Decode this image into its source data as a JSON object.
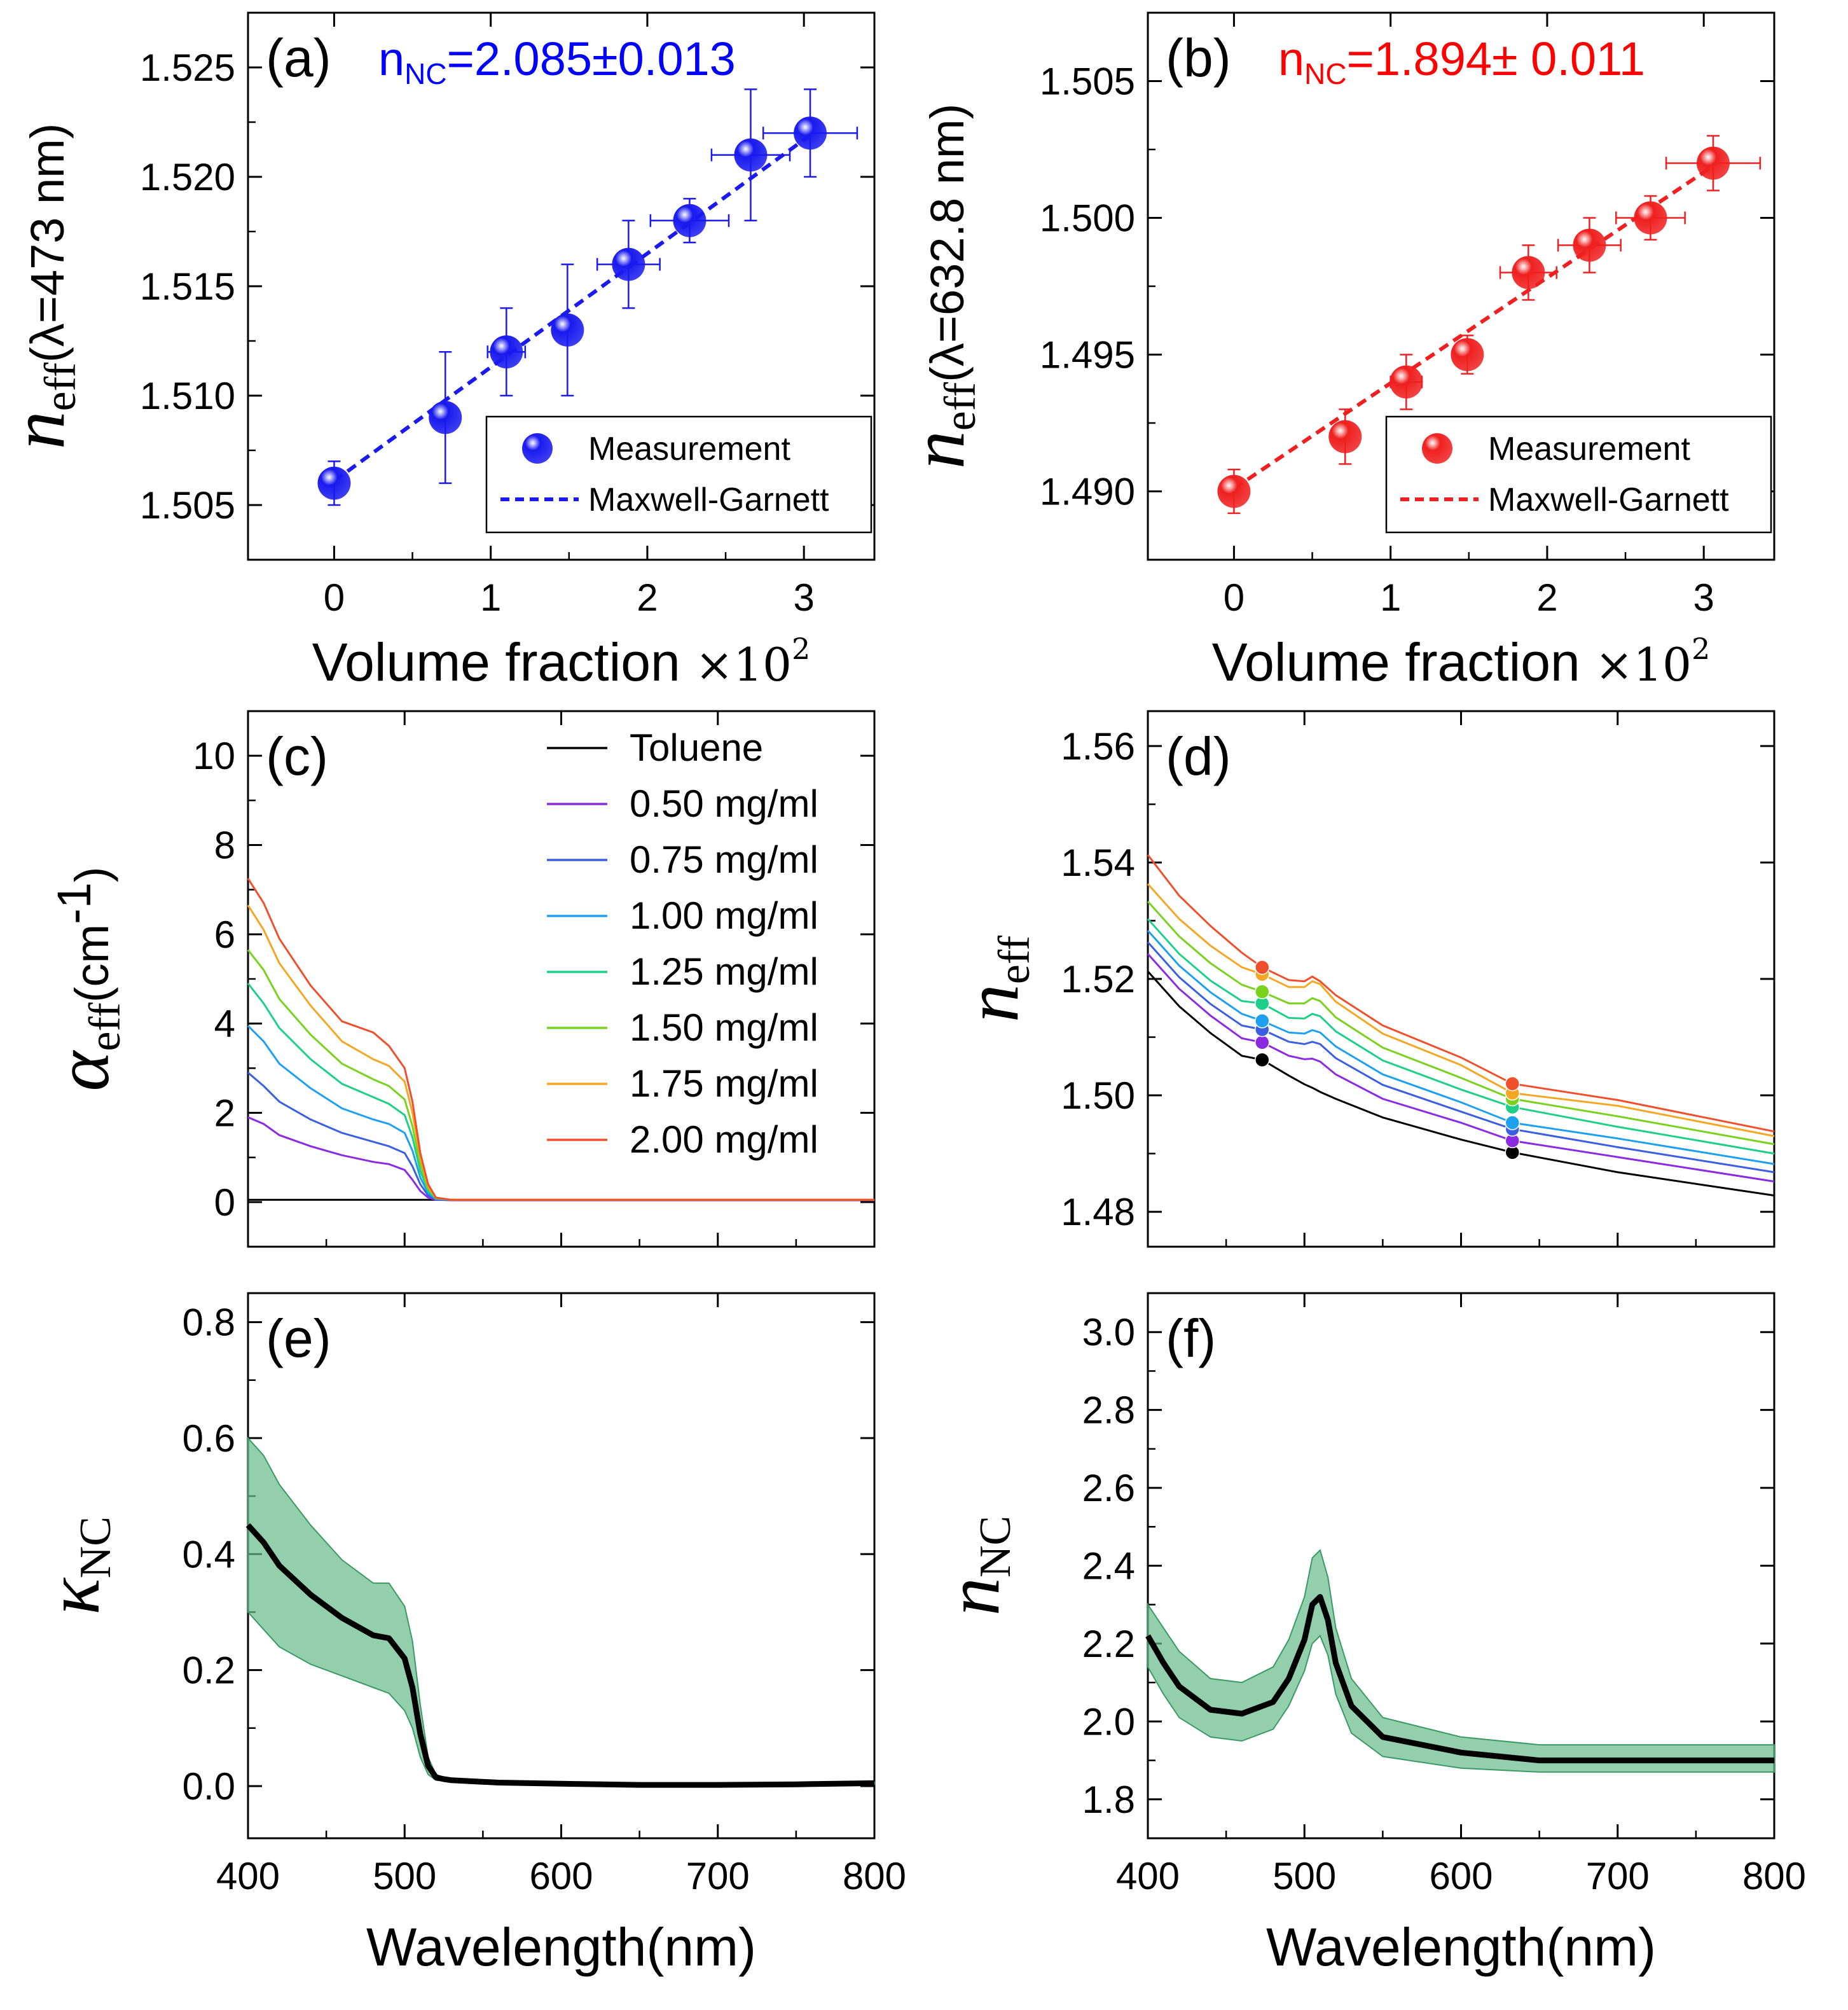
{
  "chart_data": [
    {
      "panel": "(a)",
      "type": "scatter",
      "annotation": {
        "prefix": "n",
        "sub": "NC",
        "value": "=2.085±0.013",
        "color": "#0000ff"
      },
      "xlabel": "Volume fraction ×10²",
      "xlabel_main": "Volume fraction ",
      "xlabel_times": "×",
      "xlabel_base": "10",
      "xlabel_exp": "2",
      "ylabel_main": "n",
      "ylabel_sub": "eff",
      "ylabel_paren": "(λ=473 nm)",
      "xlim": [
        -0.55,
        3.45
      ],
      "ylim": [
        1.5025,
        1.5275
      ],
      "xticks": [
        0,
        1,
        2,
        3
      ],
      "xtick_labels": [
        "0",
        "1",
        "2",
        "3"
      ],
      "yticks": [
        1.505,
        1.51,
        1.515,
        1.52,
        1.525
      ],
      "ytick_labels": [
        "1.505",
        "1.510",
        "1.515",
        "1.520",
        "1.525"
      ],
      "points": [
        {
          "x": 0.0,
          "y": 1.506,
          "xerr": 0.0,
          "yerr": 0.001
        },
        {
          "x": 0.71,
          "y": 1.509,
          "xerr": 0.0,
          "yerr": 0.003
        },
        {
          "x": 1.1,
          "y": 1.512,
          "xerr": 0.12,
          "yerr": 0.002
        },
        {
          "x": 1.49,
          "y": 1.513,
          "xerr": 0.0,
          "yerr": 0.003
        },
        {
          "x": 1.88,
          "y": 1.516,
          "xerr": 0.2,
          "yerr": 0.002
        },
        {
          "x": 2.27,
          "y": 1.518,
          "xerr": 0.25,
          "yerr": 0.001
        },
        {
          "x": 2.66,
          "y": 1.521,
          "xerr": 0.25,
          "yerr": 0.003
        },
        {
          "x": 3.04,
          "y": 1.522,
          "xerr": 0.3,
          "yerr": 0.002
        }
      ],
      "fit": {
        "x": [
          0.0,
          3.04
        ],
        "y": [
          1.5061,
          1.5219
        ]
      },
      "marker_color": "#1a1af0",
      "legend": [
        "Measurement",
        "Maxwell-Garnett"
      ]
    },
    {
      "panel": "(b)",
      "type": "scatter",
      "annotation": {
        "prefix": "n",
        "sub": "NC",
        "value": "=1.894±  0.011",
        "color": "#ff0000"
      },
      "xlabel": "Volume fraction ×10²",
      "xlabel_main": "Volume fraction ",
      "xlabel_times": "×",
      "xlabel_base": "10",
      "xlabel_exp": "2",
      "ylabel_main": "n",
      "ylabel_sub": "eff",
      "ylabel_paren": "(λ=632.8 nm)",
      "xlim": [
        -0.55,
        3.45
      ],
      "ylim": [
        1.4875,
        1.5075
      ],
      "xticks": [
        0,
        1,
        2,
        3
      ],
      "xtick_labels": [
        "0",
        "1",
        "2",
        "3"
      ],
      "yticks": [
        1.49,
        1.495,
        1.5,
        1.505
      ],
      "ytick_labels": [
        "1.490",
        "1.495",
        "1.500",
        "1.505"
      ],
      "points": [
        {
          "x": 0.0,
          "y": 1.49,
          "xerr": 0.0,
          "yerr": 0.0008
        },
        {
          "x": 0.71,
          "y": 1.492,
          "xerr": 0.0,
          "yerr": 0.001
        },
        {
          "x": 1.1,
          "y": 1.494,
          "xerr": 0.1,
          "yerr": 0.001
        },
        {
          "x": 1.49,
          "y": 1.495,
          "xerr": 0.0,
          "yerr": 0.0007
        },
        {
          "x": 1.88,
          "y": 1.498,
          "xerr": 0.18,
          "yerr": 0.001
        },
        {
          "x": 2.27,
          "y": 1.499,
          "xerr": 0.2,
          "yerr": 0.001
        },
        {
          "x": 2.66,
          "y": 1.5,
          "xerr": 0.22,
          "yerr": 0.0008
        },
        {
          "x": 3.06,
          "y": 1.502,
          "xerr": 0.3,
          "yerr": 0.001
        }
      ],
      "fit": {
        "x": [
          0.0,
          3.06
        ],
        "y": [
          1.4901,
          1.5019
        ]
      },
      "marker_color": "#f02020",
      "legend": [
        "Measurement",
        "Maxwell-Garnett"
      ]
    },
    {
      "panel": "(c)",
      "type": "line",
      "ylabel_main": "α",
      "ylabel_sub": "eff",
      "ylabel_paren": "(cm",
      "ylabel_paren_sup": "-1",
      "ylabel_paren_end": ")",
      "xlim": [
        400,
        800
      ],
      "ylim": [
        -1.0,
        11.0
      ],
      "xticks": [
        400,
        500,
        600,
        700,
        800
      ],
      "yticks": [
        0,
        2,
        4,
        6,
        8,
        10
      ],
      "ytick_labels": [
        "0",
        "2",
        "4",
        "6",
        "8",
        "10"
      ],
      "x": [
        400,
        410,
        420,
        440,
        460,
        480,
        490,
        500,
        505,
        510,
        515,
        520,
        530,
        560,
        600,
        700,
        800
      ],
      "series": [
        {
          "name": "Toluene",
          "color": "#000000",
          "values": [
            0.05,
            0.05,
            0.05,
            0.05,
            0.05,
            0.05,
            0.05,
            0.05,
            0.05,
            0.05,
            0.05,
            0.05,
            0.05,
            0.05,
            0.05,
            0.05,
            0.05
          ]
        },
        {
          "name": "0.50 mg/ml",
          "color": "#8a2be2",
          "values": [
            1.9,
            1.75,
            1.5,
            1.25,
            1.05,
            0.9,
            0.85,
            0.72,
            0.5,
            0.25,
            0.1,
            0.05,
            0.04,
            0.04,
            0.04,
            0.04,
            0.04
          ]
        },
        {
          "name": "0.75 mg/ml",
          "color": "#3a5fe0",
          "values": [
            2.9,
            2.6,
            2.25,
            1.85,
            1.55,
            1.35,
            1.25,
            1.1,
            0.8,
            0.4,
            0.15,
            0.06,
            0.05,
            0.05,
            0.05,
            0.05,
            0.05
          ]
        },
        {
          "name": "1.00 mg/ml",
          "color": "#1ea0f0",
          "values": [
            3.95,
            3.6,
            3.1,
            2.55,
            2.1,
            1.85,
            1.75,
            1.55,
            1.15,
            0.55,
            0.2,
            0.07,
            0.05,
            0.05,
            0.05,
            0.05,
            0.05
          ]
        },
        {
          "name": "1.25 mg/ml",
          "color": "#1ecf8a",
          "values": [
            4.9,
            4.45,
            3.9,
            3.2,
            2.65,
            2.35,
            2.2,
            1.95,
            1.45,
            0.7,
            0.25,
            0.08,
            0.05,
            0.05,
            0.05,
            0.05,
            0.05
          ]
        },
        {
          "name": "1.50 mg/ml",
          "color": "#78d21e",
          "values": [
            5.65,
            5.2,
            4.55,
            3.75,
            3.1,
            2.75,
            2.6,
            2.3,
            1.7,
            0.85,
            0.3,
            0.09,
            0.05,
            0.05,
            0.05,
            0.05,
            0.05
          ]
        },
        {
          "name": "1.75 mg/ml",
          "color": "#f5a623",
          "values": [
            6.65,
            6.1,
            5.35,
            4.4,
            3.6,
            3.2,
            3.05,
            2.7,
            2.0,
            1.0,
            0.35,
            0.1,
            0.05,
            0.05,
            0.05,
            0.05,
            0.05
          ]
        },
        {
          "name": "2.00 mg/ml",
          "color": "#ef4f2a",
          "values": [
            7.25,
            6.7,
            5.9,
            4.85,
            4.05,
            3.8,
            3.5,
            3.0,
            2.25,
            1.1,
            0.4,
            0.1,
            0.05,
            0.05,
            0.05,
            0.05,
            0.05
          ]
        }
      ]
    },
    {
      "panel": "(d)",
      "type": "line",
      "ylabel_main": "n",
      "ylabel_sub": "eff",
      "xlim": [
        400,
        800
      ],
      "ylim": [
        1.474,
        1.566
      ],
      "xticks": [
        400,
        500,
        600,
        700,
        800
      ],
      "yticks": [
        1.48,
        1.5,
        1.52,
        1.54,
        1.56
      ],
      "ytick_labels": [
        "1.48",
        "1.50",
        "1.52",
        "1.54",
        "1.56"
      ],
      "x": [
        400,
        420,
        440,
        460,
        473,
        490,
        500,
        505,
        510,
        520,
        550,
        600,
        632.8,
        700,
        800
      ],
      "series": [
        {
          "name": "Toluene",
          "color": "#000000",
          "values": [
            1.5213,
            1.5153,
            1.5107,
            1.5068,
            1.5061,
            1.5034,
            1.5019,
            1.5013,
            1.5006,
            1.4994,
            1.4962,
            1.4924,
            1.4902,
            1.4868,
            1.4828
          ]
        },
        {
          "name": "0.50 mg/ml",
          "color": "#8a2be2",
          "values": [
            1.5243,
            1.5183,
            1.5137,
            1.5098,
            1.5091,
            1.5068,
            1.5062,
            1.5063,
            1.5058,
            1.5036,
            1.4994,
            1.4953,
            1.4922,
            1.4894,
            1.4852
          ]
        },
        {
          "name": "0.75 mg/ml",
          "color": "#3a5fe0",
          "values": [
            1.5263,
            1.5203,
            1.5157,
            1.512,
            1.5113,
            1.5092,
            1.5088,
            1.5092,
            1.5088,
            1.5064,
            1.5018,
            1.4972,
            1.4942,
            1.4911,
            1.4868
          ]
        },
        {
          "name": "1.00 mg/ml",
          "color": "#1ea0f0",
          "values": [
            1.5283,
            1.5223,
            1.5177,
            1.514,
            1.5128,
            1.5108,
            1.5106,
            1.5112,
            1.5108,
            1.5084,
            1.5036,
            1.4988,
            1.4953,
            1.4926,
            1.4882
          ]
        },
        {
          "name": "1.25 mg/ml",
          "color": "#1ecf8a",
          "values": [
            1.5303,
            1.5243,
            1.5197,
            1.5162,
            1.5158,
            1.5133,
            1.5132,
            1.514,
            1.5136,
            1.511,
            1.506,
            1.501,
            1.498,
            1.4946,
            1.49
          ]
        },
        {
          "name": "1.50 mg/ml",
          "color": "#78d21e",
          "values": [
            1.5333,
            1.5273,
            1.5227,
            1.519,
            1.5178,
            1.5158,
            1.5158,
            1.5167,
            1.5162,
            1.5134,
            1.5082,
            1.503,
            1.4994,
            1.4964,
            1.4916
          ]
        },
        {
          "name": "1.75 mg/ml",
          "color": "#f5a623",
          "values": [
            1.5363,
            1.5303,
            1.5257,
            1.522,
            1.5208,
            1.5186,
            1.5186,
            1.5196,
            1.5191,
            1.5161,
            1.5106,
            1.5052,
            1.5004,
            1.4982,
            1.493
          ]
        },
        {
          "name": "2.00 mg/ml",
          "color": "#ef4f2a",
          "values": [
            1.5413,
            1.5343,
            1.5291,
            1.5245,
            1.522,
            1.5198,
            1.5196,
            1.5204,
            1.5196,
            1.5172,
            1.512,
            1.5065,
            1.502,
            1.4992,
            1.4938
          ]
        }
      ],
      "markers": {
        "x": [
          473,
          632.8
        ],
        "values": [
          [
            1.5061,
            1.4902
          ],
          [
            1.5091,
            1.4922
          ],
          [
            1.5113,
            1.4942
          ],
          [
            1.5128,
            1.4953
          ],
          [
            1.5158,
            1.498
          ],
          [
            1.5178,
            1.4994
          ],
          [
            1.5208,
            1.5004
          ],
          [
            1.522,
            1.502
          ]
        ]
      }
    },
    {
      "panel": "(e)",
      "type": "line",
      "ylabel_main": "κ",
      "ylabel_sub": "NC",
      "xlabel": "Wavelength(nm)",
      "xlim": [
        400,
        800
      ],
      "ylim": [
        -0.09,
        0.85
      ],
      "xticks": [
        400,
        500,
        600,
        700,
        800
      ],
      "xtick_labels": [
        "400",
        "500",
        "600",
        "700",
        "800"
      ],
      "yticks": [
        0.0,
        0.2,
        0.4,
        0.6,
        0.8
      ],
      "ytick_labels": [
        "0.0",
        "0.2",
        "0.4",
        "0.6",
        "0.8"
      ],
      "x": [
        400,
        410,
        420,
        440,
        460,
        480,
        490,
        500,
        505,
        510,
        515,
        520,
        525,
        530,
        560,
        600,
        650,
        700,
        750,
        800
      ],
      "series": [
        {
          "name": "κNC",
          "color": "#000000",
          "values": [
            0.45,
            0.42,
            0.38,
            0.33,
            0.29,
            0.26,
            0.255,
            0.22,
            0.17,
            0.09,
            0.035,
            0.015,
            0.012,
            0.01,
            0.006,
            0.004,
            0.002,
            0.002,
            0.003,
            0.005
          ]
        }
      ],
      "band": {
        "color": "#66bb8a",
        "upper": [
          0.6,
          0.57,
          0.52,
          0.45,
          0.39,
          0.35,
          0.35,
          0.31,
          0.25,
          0.14,
          0.05,
          0.02,
          0.015,
          0.013,
          0.008,
          0.006,
          0.004,
          0.004,
          0.005,
          0.007
        ],
        "lower": [
          0.3,
          0.27,
          0.24,
          0.21,
          0.19,
          0.17,
          0.16,
          0.13,
          0.1,
          0.05,
          0.02,
          0.01,
          0.009,
          0.007,
          0.004,
          0.002,
          0.0,
          0.0,
          0.001,
          0.003
        ]
      }
    },
    {
      "panel": "(f)",
      "type": "line",
      "ylabel_main": "n",
      "ylabel_sub": "NC",
      "xlabel": "Wavelength(nm)",
      "xlim": [
        400,
        800
      ],
      "ylim": [
        1.7,
        3.1
      ],
      "xticks": [
        400,
        500,
        600,
        700,
        800
      ],
      "xtick_labels": [
        "400",
        "500",
        "600",
        "700",
        "800"
      ],
      "yticks": [
        1.8,
        2.0,
        2.2,
        2.4,
        2.6,
        2.8,
        3.0
      ],
      "ytick_labels": [
        "1.8",
        "2.0",
        "2.2",
        "2.4",
        "2.6",
        "2.8",
        "3.0"
      ],
      "x": [
        400,
        410,
        420,
        440,
        460,
        480,
        490,
        500,
        505,
        510,
        515,
        520,
        530,
        550,
        600,
        650,
        700,
        750,
        800
      ],
      "series": [
        {
          "name": "nNC",
          "color": "#000000",
          "values": [
            2.22,
            2.15,
            2.09,
            2.03,
            2.02,
            2.05,
            2.11,
            2.21,
            2.3,
            2.32,
            2.26,
            2.15,
            2.04,
            1.96,
            1.92,
            1.9,
            1.9,
            1.9,
            1.9
          ]
        }
      ],
      "band": {
        "color": "#66bb8a",
        "upper": [
          2.3,
          2.24,
          2.18,
          2.11,
          2.1,
          2.14,
          2.21,
          2.32,
          2.42,
          2.44,
          2.37,
          2.24,
          2.11,
          2.01,
          1.96,
          1.94,
          1.94,
          1.94,
          1.94
        ],
        "lower": [
          2.14,
          2.07,
          2.01,
          1.96,
          1.95,
          1.98,
          2.04,
          2.13,
          2.2,
          2.22,
          2.17,
          2.07,
          1.97,
          1.91,
          1.88,
          1.87,
          1.87,
          1.87,
          1.87
        ]
      }
    }
  ]
}
